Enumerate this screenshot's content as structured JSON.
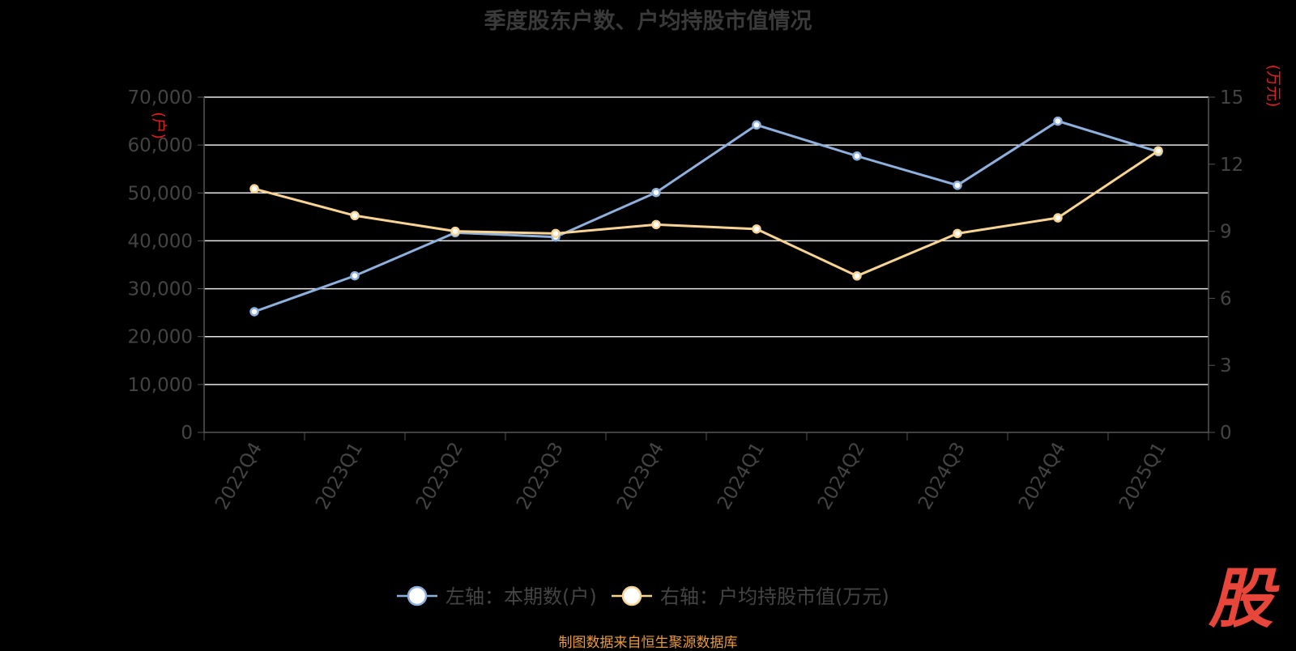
{
  "title": "季度股东户数、户均持股市值情况",
  "footer": "制图数据来自恒生聚源数据库",
  "logo": "股",
  "chart_data": {
    "type": "line",
    "title": "季度股东户数、户均持股市值情况",
    "categories": [
      "2022Q4",
      "2023Q1",
      "2023Q2",
      "2023Q3",
      "2023Q4",
      "2024Q1",
      "2024Q2",
      "2024Q3",
      "2024Q4",
      "2025Q1"
    ],
    "y_left": {
      "unit": "(户)",
      "ylim": [
        0,
        70000
      ],
      "ticks": [
        "0",
        "10,000",
        "20,000",
        "30,000",
        "40,000",
        "50,000",
        "60,000",
        "70,000"
      ]
    },
    "y_right": {
      "unit": "(万元)",
      "ylim": [
        0,
        15
      ],
      "ticks": [
        "0",
        "3",
        "6",
        "9",
        "12",
        "15"
      ]
    },
    "grid": true,
    "legend_position": "bottom-center",
    "series": [
      {
        "name": "左轴：本期数(户)",
        "axis": "left",
        "color": "#8fb0dd",
        "values": [
          25200,
          32700,
          41700,
          40800,
          50100,
          64200,
          57700,
          51600,
          65000,
          58600
        ]
      },
      {
        "name": "右轴：户均持股市值(万元)",
        "axis": "right",
        "color": "#f7d494",
        "values": [
          10.9,
          9.7,
          9.0,
          8.9,
          9.3,
          9.1,
          7.0,
          8.9,
          9.6,
          12.6
        ]
      }
    ]
  }
}
